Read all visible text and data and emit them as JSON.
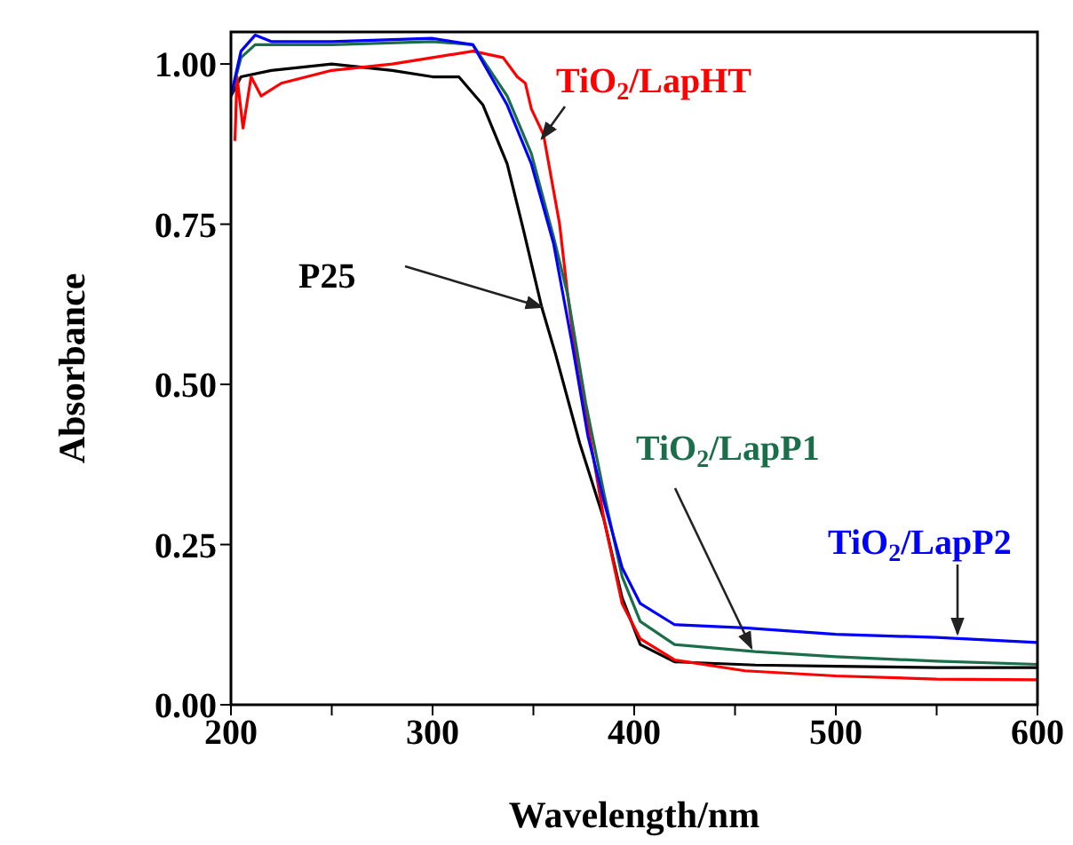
{
  "chart_data": {
    "type": "line",
    "xlabel": "Wavelength/nm",
    "ylabel": "Absorbance",
    "xlim": [
      200,
      600
    ],
    "ylim": [
      0,
      1.05
    ],
    "xticks": [
      200,
      {
        "value": 250,
        "label": null
      },
      300,
      {
        "value": 350,
        "label": null
      },
      400,
      {
        "value": 450,
        "label": null
      },
      500,
      {
        "value": 550,
        "label": null
      },
      600
    ],
    "yticks": [
      {
        "value": 0,
        "label": "0.00"
      },
      {
        "value": 0.25,
        "label": "0.25"
      },
      {
        "value": 0.5,
        "label": "0.50"
      },
      {
        "value": 0.75,
        "label": "0.75"
      },
      {
        "value": 1,
        "label": "1.00"
      }
    ],
    "grid": false,
    "legend": false,
    "marker": "none",
    "line_style": "solid",
    "series": [
      {
        "name": "P25",
        "color": "#000000",
        "x": [
          200,
          205,
          220,
          250,
          280,
          300,
          313,
          325,
          337,
          345,
          354,
          361,
          373,
          385,
          394,
          403,
          420,
          460,
          500,
          550,
          600
        ],
        "values": [
          0.95,
          0.98,
          0.99,
          1.0,
          0.99,
          0.98,
          0.98,
          0.936,
          0.844,
          0.742,
          0.622,
          0.547,
          0.408,
          0.289,
          0.167,
          0.094,
          0.067,
          0.062,
          0.06,
          0.058,
          0.058
        ]
      },
      {
        "name": "TiO$_{2}$/LapHT",
        "color": "#ff0000",
        "x": [
          202,
          203,
          206,
          210,
          215,
          225,
          250,
          280,
          300,
          320,
          335,
          342,
          346,
          349,
          352,
          355,
          363,
          367,
          372,
          376,
          385,
          394,
          403,
          420,
          455,
          500,
          550,
          600
        ],
        "values": [
          0.88,
          0.98,
          0.9,
          0.98,
          0.95,
          0.97,
          0.99,
          1.0,
          1.01,
          1.02,
          1.01,
          0.98,
          0.97,
          0.93,
          0.91,
          0.89,
          0.75,
          0.64,
          0.52,
          0.455,
          0.29,
          0.158,
          0.103,
          0.07,
          0.053,
          0.045,
          0.04,
          0.039
        ]
      },
      {
        "name": "TiO$_{2}$/LapP1",
        "color": "#1a6e4a",
        "x": [
          200,
          205,
          212,
          250,
          300,
          320,
          337,
          349,
          360,
          367,
          376,
          385,
          394,
          403,
          420,
          460,
          500,
          550,
          600
        ],
        "values": [
          0.95,
          1.01,
          1.03,
          1.03,
          1.035,
          1.03,
          0.95,
          0.86,
          0.73,
          0.64,
          0.47,
          0.33,
          0.2,
          0.13,
          0.094,
          0.083,
          0.075,
          0.068,
          0.063
        ]
      },
      {
        "name": "TiO$_{2}$/LapP2",
        "color": "#0000ff",
        "x": [
          200,
          205,
          212,
          220,
          250,
          300,
          320,
          337,
          349,
          360,
          369,
          377,
          385,
          394,
          403,
          420,
          455,
          500,
          550,
          600
        ],
        "values": [
          0.95,
          1.02,
          1.045,
          1.035,
          1.035,
          1.04,
          1.03,
          0.936,
          0.844,
          0.72,
          0.567,
          0.42,
          0.317,
          0.214,
          0.158,
          0.125,
          0.12,
          0.11,
          0.105,
          0.097
        ]
      }
    ]
  }
}
